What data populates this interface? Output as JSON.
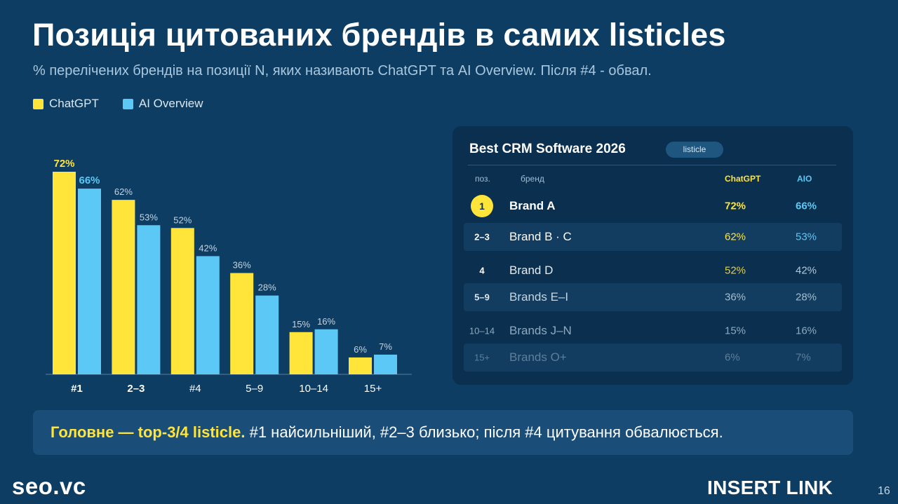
{
  "header": {
    "title": "Позиція цитованих брендів в самих listicles",
    "subtitle": "% перелічених брендів на позиції N, яких називають ChatGPT та AI Overview. Після #4 - обвал."
  },
  "colors": {
    "background": "#0d3d63",
    "chatgpt": "#ffe43a",
    "aio": "#5cc8f5"
  },
  "chart_data": {
    "type": "bar",
    "categories": [
      "#1",
      "2–3",
      "#4",
      "5–9",
      "10–14",
      "15+"
    ],
    "series": [
      {
        "name": "ChatGPT",
        "values": [
          72,
          62,
          52,
          36,
          15,
          6
        ],
        "labels": [
          "72%",
          "62%",
          "52%",
          "36%",
          "15%",
          "6%"
        ]
      },
      {
        "name": "AI Overview",
        "values": [
          66,
          53,
          42,
          28,
          16,
          7
        ],
        "labels": [
          "66%",
          "53%",
          "42%",
          "28%",
          "16%",
          "7%"
        ]
      }
    ],
    "ylim": [
      0,
      72
    ],
    "grid": false,
    "legend": "top-left"
  },
  "panel": {
    "title": "Best CRM Software 2026",
    "badge": "listicle",
    "headers": {
      "pos": "поз.",
      "brand": "бренд",
      "chatgpt": "ChatGPT",
      "aio": "AIO"
    },
    "rows": [
      {
        "pos": "1",
        "brand": "Brand A",
        "chatgpt": "72%",
        "aio": "66%"
      },
      {
        "pos": "2–3",
        "brand": "Brand B · C",
        "chatgpt": "62%",
        "aio": "53%"
      },
      {
        "pos": "4",
        "brand": "Brand D",
        "chatgpt": "52%",
        "aio": "42%"
      },
      {
        "pos": "5–9",
        "brand": "Brands E–I",
        "chatgpt": "36%",
        "aio": "28%"
      },
      {
        "pos": "10–14",
        "brand": "Brands J–N",
        "chatgpt": "15%",
        "aio": "16%"
      },
      {
        "pos": "15+",
        "brand": "Brands O+",
        "chatgpt": "6%",
        "aio": "7%"
      }
    ]
  },
  "callout": {
    "strong": "Головне — top-3/4 listicle.",
    "text": " #1 найсильніший, #2–3 близько; після #4 цитування обвалюється."
  },
  "footer": {
    "left_logo": "seo.vc",
    "right_logo": "INSERT LINK",
    "page_number": "16"
  }
}
